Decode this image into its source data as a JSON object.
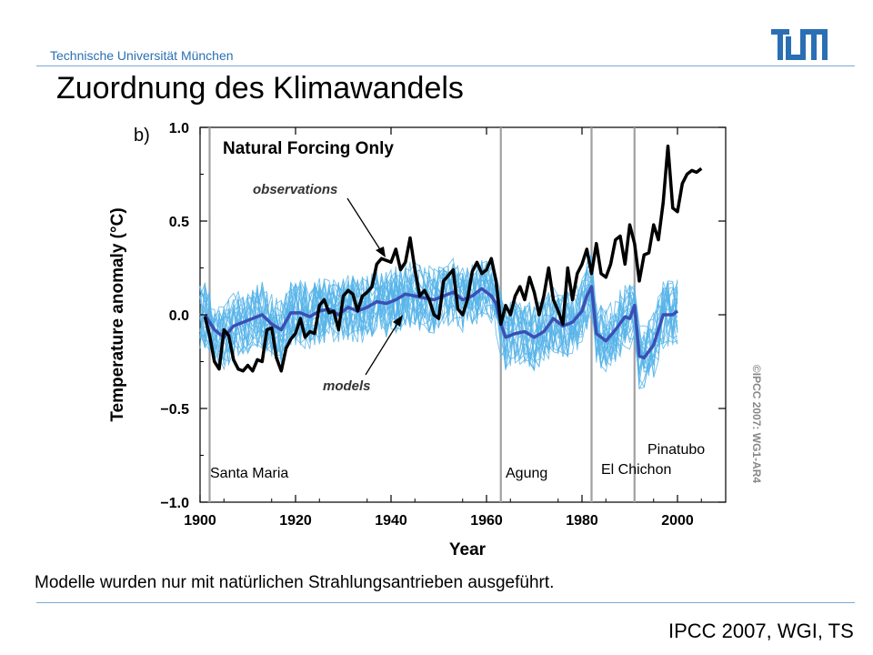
{
  "header": {
    "university": "Technische Universität München",
    "logo_text": "TUM",
    "title": "Zuordnung des Klimawandels"
  },
  "footer": {
    "caption": "Modelle wurden nur mit natürlichen Strahlungsantrieben ausgeführt.",
    "source": "IPCC 2007, WGI, TS"
  },
  "colors": {
    "accent": "#2a6fb3",
    "observations": "#000000",
    "models_mean": "#3a4fb4",
    "model_runs": "#56b4e9",
    "volcano_lines": "#a0a0a0"
  },
  "chart_data": {
    "type": "line",
    "panel_label": "b)",
    "title": "Natural Forcing Only",
    "xlabel": "Year",
    "ylabel": "Temperature anomaly (°C)",
    "xlim": [
      1900,
      2010
    ],
    "ylim": [
      -1.0,
      1.0
    ],
    "x_ticks": [
      1900,
      1920,
      1940,
      1960,
      1980,
      2000
    ],
    "y_ticks": [
      {
        "value": 1.0,
        "label": "1.0"
      },
      {
        "value": 0.5,
        "label": "0.5"
      },
      {
        "value": 0.0,
        "label": "0.0"
      },
      {
        "value": -0.5,
        "label": "−0.5"
      },
      {
        "value": -1.0,
        "label": "−1.0"
      }
    ],
    "annotations": {
      "observations": "observations",
      "models": "models",
      "copyright": "©IPCC 2007: WG1-AR4"
    },
    "volcanoes": [
      {
        "name": "Santa Maria",
        "year": 1902
      },
      {
        "name": "Agung",
        "year": 1963
      },
      {
        "name": "El Chichon",
        "year": 1982
      },
      {
        "name": "Pinatubo",
        "year": 1991
      }
    ],
    "series": [
      {
        "name": "observations",
        "x": [
          1901,
          1902,
          1903,
          1904,
          1905,
          1906,
          1907,
          1908,
          1909,
          1910,
          1911,
          1912,
          1913,
          1914,
          1915,
          1916,
          1917,
          1918,
          1919,
          1920,
          1921,
          1922,
          1923,
          1924,
          1925,
          1926,
          1927,
          1928,
          1929,
          1930,
          1931,
          1932,
          1933,
          1934,
          1935,
          1936,
          1937,
          1938,
          1939,
          1940,
          1941,
          1942,
          1943,
          1944,
          1945,
          1946,
          1947,
          1948,
          1949,
          1950,
          1951,
          1952,
          1953,
          1954,
          1955,
          1956,
          1957,
          1958,
          1959,
          1960,
          1961,
          1962,
          1963,
          1964,
          1965,
          1966,
          1967,
          1968,
          1969,
          1970,
          1971,
          1972,
          1973,
          1974,
          1975,
          1976,
          1977,
          1978,
          1979,
          1980,
          1981,
          1982,
          1983,
          1984,
          1985,
          1986,
          1987,
          1988,
          1989,
          1990,
          1991,
          1992,
          1993,
          1994,
          1995,
          1996,
          1997,
          1998,
          1999,
          2000,
          2001,
          2002,
          2003,
          2004,
          2005
        ],
        "values": [
          -0.01,
          -0.11,
          -0.25,
          -0.29,
          -0.08,
          -0.11,
          -0.24,
          -0.29,
          -0.3,
          -0.27,
          -0.3,
          -0.24,
          -0.25,
          -0.08,
          -0.07,
          -0.23,
          -0.3,
          -0.18,
          -0.13,
          -0.1,
          -0.02,
          -0.12,
          -0.09,
          -0.1,
          0.05,
          0.08,
          0.01,
          0.02,
          -0.08,
          0.1,
          0.13,
          0.11,
          0.02,
          0.1,
          0.12,
          0.15,
          0.27,
          0.3,
          0.29,
          0.28,
          0.35,
          0.24,
          0.28,
          0.41,
          0.24,
          0.1,
          0.13,
          0.08,
          0.0,
          -0.02,
          0.18,
          0.21,
          0.24,
          0.03,
          0.0,
          0.08,
          0.23,
          0.28,
          0.22,
          0.24,
          0.3,
          0.18,
          -0.05,
          0.05,
          0.0,
          0.1,
          0.15,
          0.08,
          0.2,
          0.12,
          0.0,
          0.1,
          0.25,
          0.08,
          0.02,
          -0.05,
          0.25,
          0.08,
          0.22,
          0.27,
          0.35,
          0.22,
          0.38,
          0.22,
          0.2,
          0.27,
          0.4,
          0.42,
          0.27,
          0.48,
          0.38,
          0.18,
          0.32,
          0.33,
          0.48,
          0.4,
          0.6,
          0.9,
          0.57,
          0.55,
          0.7,
          0.75,
          0.77,
          0.76,
          0.78
        ]
      },
      {
        "name": "models",
        "x": [
          1901,
          1903,
          1905,
          1907,
          1909,
          1911,
          1913,
          1915,
          1917,
          1919,
          1921,
          1923,
          1925,
          1927,
          1929,
          1931,
          1933,
          1935,
          1937,
          1939,
          1941,
          1943,
          1945,
          1947,
          1949,
          1951,
          1953,
          1955,
          1957,
          1959,
          1961,
          1962,
          1963,
          1964,
          1966,
          1968,
          1970,
          1972,
          1974,
          1976,
          1978,
          1980,
          1981,
          1982,
          1983,
          1985,
          1987,
          1989,
          1990,
          1991,
          1992,
          1993,
          1995,
          1997,
          1999,
          2000
        ],
        "values": [
          0.0,
          -0.08,
          -0.12,
          -0.06,
          -0.04,
          -0.02,
          0.0,
          -0.05,
          -0.08,
          0.01,
          0.01,
          -0.01,
          0.02,
          0.03,
          0.0,
          0.04,
          0.02,
          0.04,
          0.07,
          0.06,
          0.08,
          0.11,
          0.1,
          0.09,
          0.08,
          0.1,
          0.12,
          0.08,
          0.1,
          0.14,
          0.1,
          0.06,
          -0.05,
          -0.12,
          -0.1,
          -0.09,
          -0.12,
          -0.09,
          -0.02,
          -0.06,
          -0.04,
          0.02,
          0.1,
          0.15,
          -0.1,
          -0.14,
          -0.08,
          -0.01,
          -0.02,
          0.05,
          -0.22,
          -0.23,
          -0.16,
          0.0,
          0.0,
          0.02
        ]
      }
    ]
  }
}
